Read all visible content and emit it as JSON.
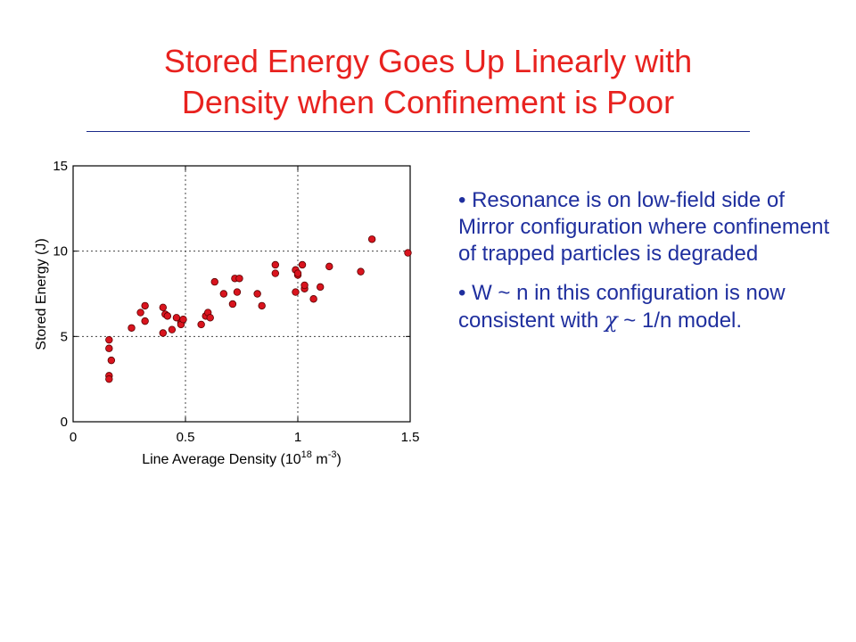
{
  "slide": {
    "title_line1": "Stored Energy Goes Up Linearly with",
    "title_line2": "Density when Confinement is Poor",
    "title_color": "#e8221f",
    "text_color": "#1f2f9e"
  },
  "bullets": {
    "b1": "Resonance is on low-field side of Mirror configuration where confinement of trapped particles is degraded",
    "b2_pre": "W ~ n in this configuration is now consistent with ",
    "b2_chi": "χ",
    "b2_post": " ~ 1/n model."
  },
  "chart_data": {
    "type": "scatter",
    "xlabel_pre": "Line Average Density (10",
    "xlabel_sup1": "18",
    "xlabel_mid": " m",
    "xlabel_sup2": "-3",
    "xlabel_post": ")",
    "ylabel": "Stored Energy (J)",
    "xlim": [
      0,
      1.5
    ],
    "ylim": [
      0,
      15
    ],
    "xticks": [
      "0",
      "0.5",
      "1",
      "1.5"
    ],
    "yticks": [
      "0",
      "5",
      "10",
      "15"
    ],
    "grid": "dotted at 0.5, 1 (x) and 5, 10 (y)",
    "marker_color": "#d9141e",
    "points": [
      {
        "x": 0.16,
        "y": 4.8
      },
      {
        "x": 0.16,
        "y": 4.3
      },
      {
        "x": 0.17,
        "y": 3.6
      },
      {
        "x": 0.16,
        "y": 2.7
      },
      {
        "x": 0.16,
        "y": 2.5
      },
      {
        "x": 0.26,
        "y": 5.5
      },
      {
        "x": 0.3,
        "y": 6.4
      },
      {
        "x": 0.32,
        "y": 6.8
      },
      {
        "x": 0.32,
        "y": 5.9
      },
      {
        "x": 0.4,
        "y": 6.7
      },
      {
        "x": 0.41,
        "y": 6.3
      },
      {
        "x": 0.42,
        "y": 6.2
      },
      {
        "x": 0.4,
        "y": 5.2
      },
      {
        "x": 0.44,
        "y": 5.4
      },
      {
        "x": 0.46,
        "y": 6.1
      },
      {
        "x": 0.48,
        "y": 5.8
      },
      {
        "x": 0.48,
        "y": 5.7
      },
      {
        "x": 0.49,
        "y": 6.0
      },
      {
        "x": 0.57,
        "y": 5.7
      },
      {
        "x": 0.59,
        "y": 6.2
      },
      {
        "x": 0.6,
        "y": 6.4
      },
      {
        "x": 0.61,
        "y": 6.1
      },
      {
        "x": 0.63,
        "y": 8.2
      },
      {
        "x": 0.67,
        "y": 7.5
      },
      {
        "x": 0.71,
        "y": 6.9
      },
      {
        "x": 0.72,
        "y": 8.4
      },
      {
        "x": 0.73,
        "y": 7.6
      },
      {
        "x": 0.74,
        "y": 8.4
      },
      {
        "x": 0.82,
        "y": 7.5
      },
      {
        "x": 0.84,
        "y": 6.8
      },
      {
        "x": 0.9,
        "y": 9.2
      },
      {
        "x": 0.9,
        "y": 8.7
      },
      {
        "x": 0.99,
        "y": 8.9
      },
      {
        "x": 1.0,
        "y": 8.6
      },
      {
        "x": 0.99,
        "y": 7.6
      },
      {
        "x": 1.0,
        "y": 8.7
      },
      {
        "x": 1.02,
        "y": 9.2
      },
      {
        "x": 1.03,
        "y": 7.8
      },
      {
        "x": 1.03,
        "y": 8.0
      },
      {
        "x": 1.07,
        "y": 7.2
      },
      {
        "x": 1.1,
        "y": 7.9
      },
      {
        "x": 1.14,
        "y": 9.1
      },
      {
        "x": 1.28,
        "y": 8.8
      },
      {
        "x": 1.33,
        "y": 10.7
      },
      {
        "x": 1.49,
        "y": 9.9
      }
    ]
  }
}
